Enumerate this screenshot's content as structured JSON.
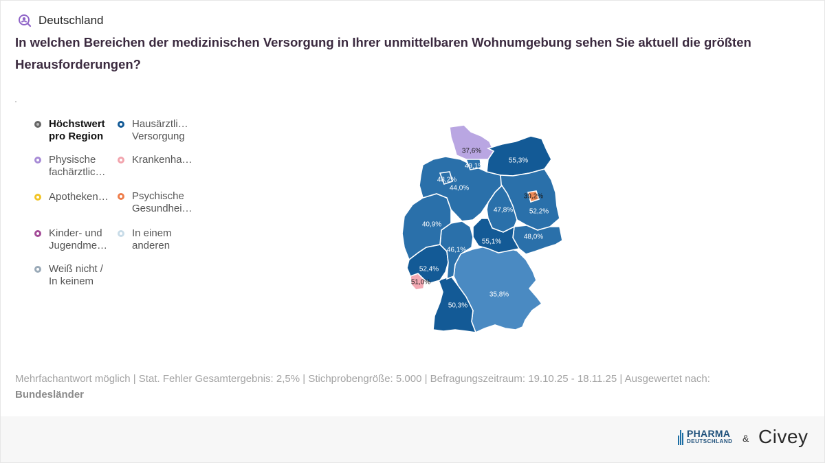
{
  "header": {
    "region": "Deutschland",
    "question": "In welchen Bereichen der medizinischen Versorgung in Ihrer unmittelbaren Wohnumgebung sehen Sie aktuell die größten Herausforderungen?"
  },
  "legend": [
    {
      "label": "Höchstwert pro Region",
      "line1": "Höchstwert",
      "line2": "pro Region",
      "color": "#666666"
    },
    {
      "label": "Hausärztliche Versorgung",
      "line1": "Hausärztli…",
      "line2": "Versorgung",
      "color": "#135a96"
    },
    {
      "label": "Physische fachärztliche Versorgung",
      "line1": "Physische",
      "line2": "fachärztlic…",
      "color": "#a78bd6"
    },
    {
      "label": "Krankenhaus",
      "line1": "Krankenha…",
      "line2": "",
      "color": "#f2a4ad"
    },
    {
      "label": "Apotheken",
      "line1": "Apotheken…",
      "line2": "",
      "color": "#f2c425"
    },
    {
      "label": "Psychische Gesundheit",
      "line1": "Psychische",
      "line2": "Gesundhei…",
      "color": "#ee7d4a"
    },
    {
      "label": "Kinder- und Jugendmedizin",
      "line1": "Kinder- und",
      "line2": "Jugendme…",
      "color": "#a34b97"
    },
    {
      "label": "In einem anderen",
      "line1": "In einem",
      "line2": "anderen",
      "color": "#c8dce8"
    },
    {
      "label": "Weiß nicht / In keinem",
      "line1": "Weiß nicht /",
      "line2": "In keinem",
      "color": "#9aaab8"
    }
  ],
  "map": {
    "colors": {
      "dark": "#135a96",
      "mid": "#2a70aa",
      "light": "#4a8ac2",
      "lilac": "#b9a6e2",
      "pink": "#f4a9b3",
      "orange": "#ee8a57"
    },
    "regions": [
      {
        "name": "Schleswig-Holstein",
        "value": "37,6%",
        "category": "Physische fachärztliche Versorgung"
      },
      {
        "name": "Hamburg",
        "value": "49,1%",
        "category": "Hausärztliche Versorgung"
      },
      {
        "name": "Mecklenburg-Vorpommern",
        "value": "55,3%",
        "category": "Hausärztliche Versorgung"
      },
      {
        "name": "Bremen",
        "value": "48,2%",
        "category": "Hausärztliche Versorgung"
      },
      {
        "name": "Niedersachsen",
        "value": "44,0%",
        "category": "Hausärztliche Versorgung"
      },
      {
        "name": "Berlin",
        "value": "39,2%",
        "category": "Psychische Gesundheit"
      },
      {
        "name": "Brandenburg",
        "value": "52,2%",
        "category": "Hausärztliche Versorgung"
      },
      {
        "name": "Sachsen-Anhalt",
        "value": "47,8%",
        "category": "Hausärztliche Versorgung"
      },
      {
        "name": "Nordrhein-Westfalen",
        "value": "40,9%",
        "category": "Hausärztliche Versorgung"
      },
      {
        "name": "Sachsen",
        "value": "48,0%",
        "category": "Hausärztliche Versorgung"
      },
      {
        "name": "Thüringen",
        "value": "55,1%",
        "category": "Hausärztliche Versorgung"
      },
      {
        "name": "Hessen",
        "value": "46,1%",
        "category": "Hausärztliche Versorgung"
      },
      {
        "name": "Rheinland-Pfalz",
        "value": "52,4%",
        "category": "Hausärztliche Versorgung"
      },
      {
        "name": "Saarland",
        "value": "51,0%",
        "category": "Krankenhaus"
      },
      {
        "name": "Baden-Württemberg",
        "value": "50,3%",
        "category": "Hausärztliche Versorgung"
      },
      {
        "name": "Bayern",
        "value": "35,8%",
        "category": "Hausärztliche Versorgung"
      }
    ]
  },
  "footer": {
    "note": "Mehrfachantwort möglich | Stat. Fehler Gesamtergebnis: 2,5% | Stichprobengröße: 5.000 | Befragungszeitraum: 19.10.25 - 18.11.25 | Ausgewertet nach:",
    "grouping": "Bundesländer"
  },
  "branding": {
    "pharma_line1": "PHARMA",
    "pharma_line2": "DEUTSCHLAND",
    "ampersand": "&",
    "civey": "Civey"
  }
}
